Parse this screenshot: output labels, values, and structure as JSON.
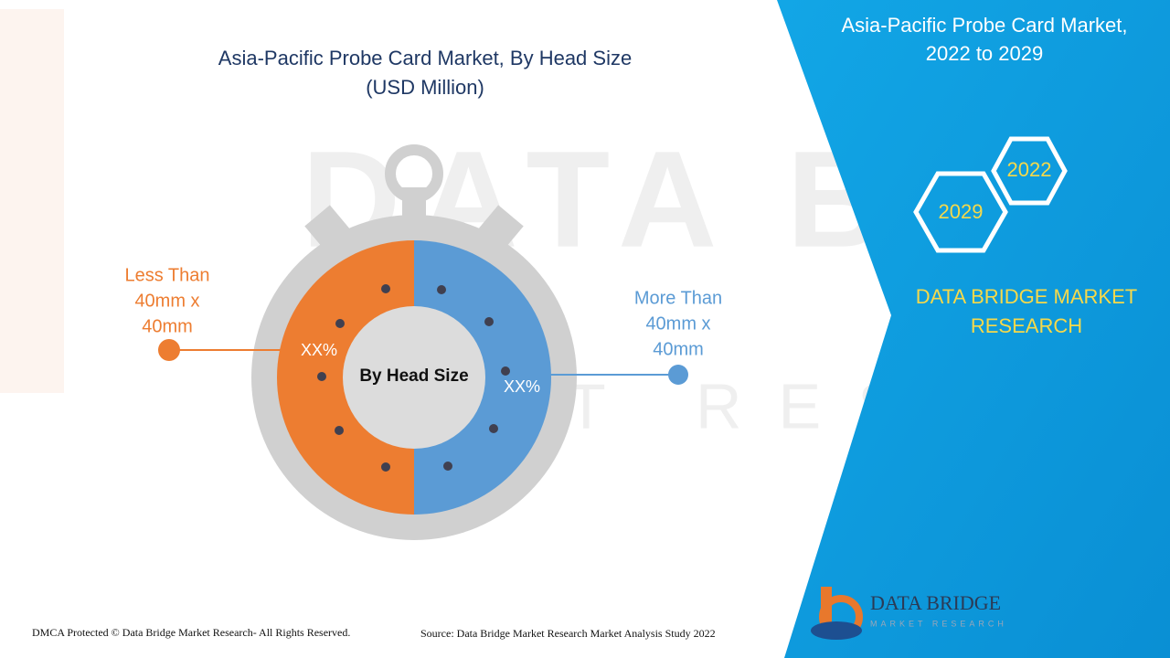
{
  "header": {
    "title": "Asia-Pacific Probe Card Market, By Head Size",
    "subtitle": "(USD Million)"
  },
  "diagram": {
    "center_label": "By Head Size",
    "segments": [
      {
        "label_lines": [
          "Less Than",
          "40mm x",
          "40mm"
        ],
        "value_label": "XX%"
      },
      {
        "label_lines": [
          "More Than",
          "40mm x",
          "40mm"
        ],
        "value_label": "XX%"
      }
    ]
  },
  "side_panel": {
    "title_lines": [
      "Asia-Pacific Probe Card Market,",
      "2022 to 2029"
    ],
    "years": [
      "2022",
      "2029"
    ],
    "brand_lines": [
      "DATA BRIDGE MARKET",
      "RESEARCH"
    ]
  },
  "logo": {
    "name": "DATA BRIDGE",
    "tagline": "MARKET RESEARCH"
  },
  "footer": {
    "copyright": "DMCA Protected © Data Bridge Market Research- All Rights Reserved.",
    "source": "Source: Data Bridge Market Research Market Analysis Study 2022"
  }
}
